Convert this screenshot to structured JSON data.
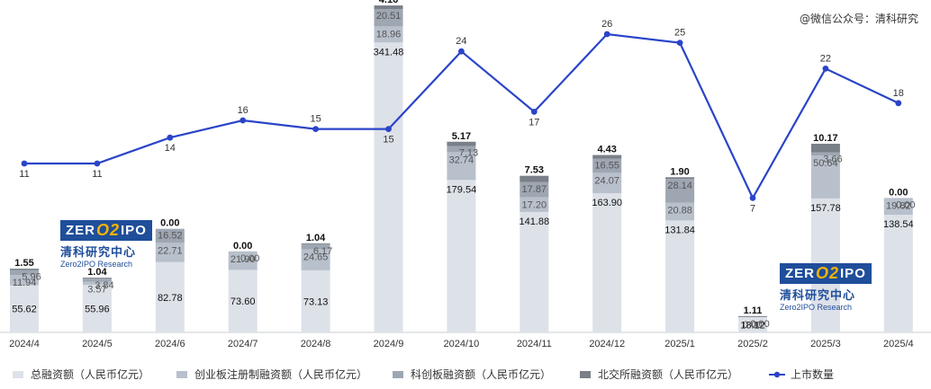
{
  "watermark": "@微信公众号：清科研究",
  "logo": {
    "box_left": "ZER",
    "box_mid": "O2",
    "box_right": "IPO",
    "cn": "清科研究中心",
    "en": "Zero2IPO Research"
  },
  "colors": {
    "total": "#dde1e8",
    "chinext": "#b8c0cc",
    "star": "#9ea6b2",
    "bse": "#7a8088",
    "line": "#2a44c8"
  },
  "chart_data": {
    "type": "bar",
    "categories": [
      "2024/4",
      "2024/5",
      "2024/6",
      "2024/7",
      "2024/8",
      "2024/9",
      "2024/10",
      "2024/11",
      "2024/12",
      "2025/1",
      "2025/2",
      "2025/3",
      "2025/4"
    ],
    "series": [
      {
        "key": "total",
        "name": "总融资额（人民币亿元）",
        "values": [
          55.62,
          55.96,
          82.78,
          73.6,
          73.13,
          341.48,
          179.54,
          141.88,
          163.9,
          131.84,
          18.12,
          157.78,
          138.54
        ]
      },
      {
        "key": "chinext",
        "name": "创业板注册制融资额（人民币亿元）",
        "values": [
          11.94,
          3.57,
          22.71,
          21.9,
          24.65,
          18.96,
          32.74,
          17.2,
          24.07,
          20.88,
          0.0,
          50.64,
          19.82
        ]
      },
      {
        "key": "star",
        "name": "科创板融资额（人民币亿元）",
        "values": [
          5.96,
          3.84,
          16.52,
          0.0,
          6.17,
          20.51,
          7.13,
          17.87,
          16.55,
          28.14,
          0.0,
          3.66,
          0.0
        ]
      },
      {
        "key": "bse",
        "name": "北交所融资额（人民币亿元）",
        "values": [
          1.55,
          1.04,
          0.0,
          0.0,
          1.04,
          4.16,
          5.17,
          7.53,
          4.43,
          1.9,
          1.11,
          10.17,
          0.0
        ]
      }
    ],
    "line": {
      "name": "上市数量",
      "values": [
        11,
        11,
        14,
        16,
        15,
        15,
        24,
        17,
        26,
        25,
        7,
        22,
        18
      ]
    }
  }
}
